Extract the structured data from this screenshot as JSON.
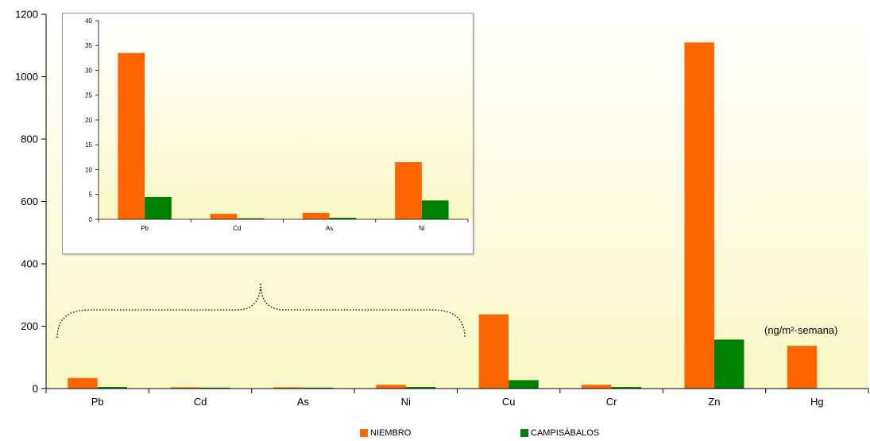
{
  "chart_data": [
    {
      "type": "bar",
      "categories": [
        "Pb",
        "Cd",
        "As",
        "Ni",
        "Cu",
        "Cr",
        "Zn",
        "Hg"
      ],
      "series": [
        {
          "name": "NIEMBRO",
          "values": [
            34,
            4,
            4,
            12,
            238,
            12,
            1110,
            137
          ],
          "color": "#ff6600"
        },
        {
          "name": "CAMPISÁBALOS",
          "values": [
            5,
            3,
            3,
            5,
            27,
            5,
            157,
            0
          ],
          "color": "#008000"
        }
      ],
      "ylim": [
        0,
        1200
      ],
      "yticks": [
        0,
        200,
        400,
        600,
        800,
        1000,
        1200
      ],
      "annotations": [
        "(ng/m²·semana)"
      ],
      "legend_position": "bottom",
      "background": "gradient-yellow"
    },
    {
      "type": "bar",
      "categories": [
        "Pb",
        "Cd",
        "As",
        "Ni"
      ],
      "series": [
        {
          "name": "NIEMBRO",
          "values": [
            33.5,
            1.1,
            1.3,
            11.5
          ],
          "color": "#ff6600"
        },
        {
          "name": "CAMPISÁBALOS",
          "values": [
            4.5,
            0.2,
            0.3,
            3.8
          ],
          "color": "#008000"
        }
      ],
      "ylim": [
        0,
        40
      ],
      "yticks": [
        0,
        5,
        10,
        15,
        20,
        25,
        30,
        35,
        40
      ],
      "background": "gradient-yellow"
    }
  ],
  "legend": {
    "items": [
      {
        "label": "NIEMBRO",
        "color": "#ff6600"
      },
      {
        "label": "CAMPISÁBALOS",
        "color": "#008000"
      }
    ]
  }
}
